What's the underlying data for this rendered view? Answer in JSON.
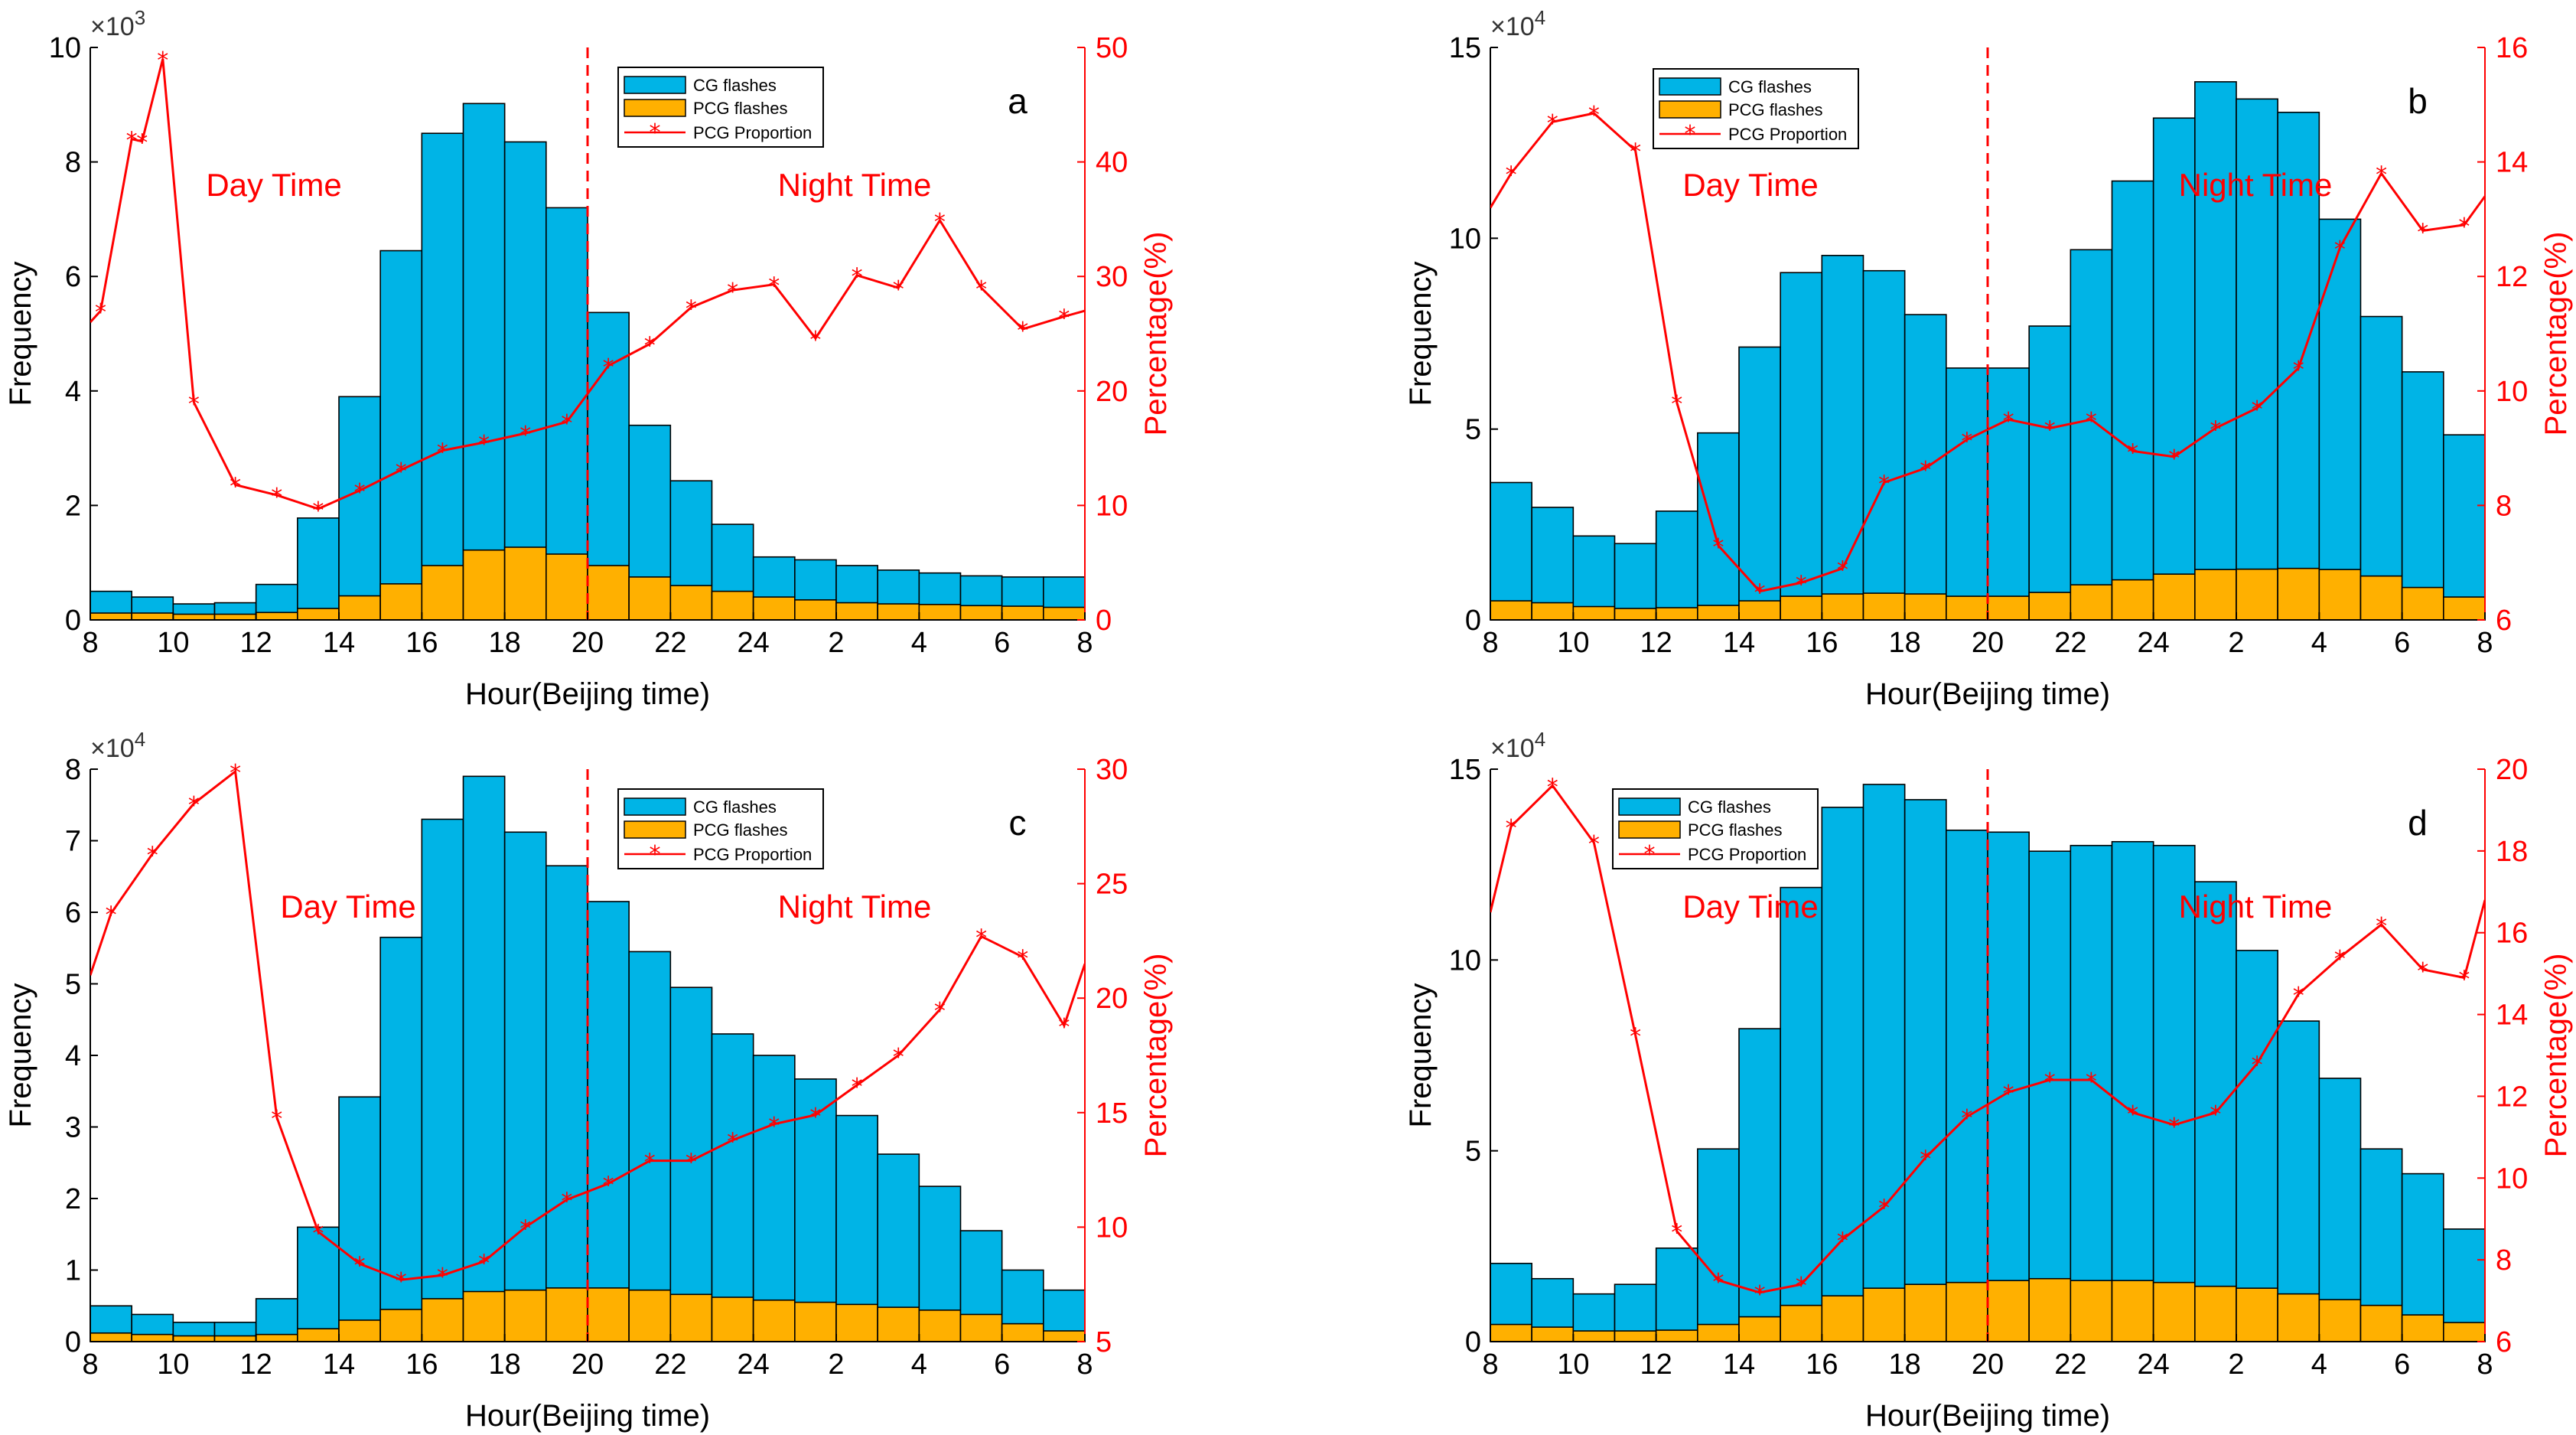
{
  "figure": {
    "xlabel": "Hour(Beijing time)",
    "ylabel_left": "Frequency",
    "ylabel_right": "Percentage(%)",
    "day_label": "Day Time",
    "night_label": "Night Time",
    "legend": [
      "CG flashes",
      "PCG flashes",
      "PCG Proportion"
    ],
    "x_ticks": [
      "8",
      "10",
      "12",
      "14",
      "16",
      "18",
      "20",
      "22",
      "24",
      "2",
      "4",
      "6",
      "8"
    ],
    "colors": {
      "cg": "#00b4e6",
      "pcg": "#ffb000",
      "line": "#ff0000",
      "divider": "#ff0000"
    }
  },
  "chart_data": [
    {
      "panel_label": "a",
      "type": "bar",
      "stacked": true,
      "title": "",
      "xlabel": "Hour(Beijing time)",
      "ylabel": "Frequency",
      "ylabel_right": "Percentage(%)",
      "exponent": "×10",
      "exponent_power": "3",
      "ylim": [
        0,
        10
      ],
      "yticks": [
        "0",
        "2",
        "4",
        "6",
        "8",
        "10"
      ],
      "ylim_right": [
        0,
        50
      ],
      "yticks_right": [
        "0",
        "10",
        "20",
        "30",
        "40",
        "50"
      ],
      "divider_hour_index": 12,
      "categories_hour_index": [
        0,
        1,
        2,
        3,
        4,
        5,
        6,
        7,
        8,
        9,
        10,
        11,
        12,
        13,
        14,
        15,
        16,
        17,
        18,
        19,
        20,
        21,
        22,
        23
      ],
      "series": [
        {
          "name": "CG flashes",
          "values": [
            0.5,
            0.4,
            0.28,
            0.3,
            0.62,
            1.78,
            3.9,
            6.45,
            8.5,
            9.02,
            8.35,
            7.2,
            5.37,
            3.4,
            2.43,
            1.67,
            1.1,
            1.05,
            0.95,
            0.87,
            0.82,
            0.77,
            0.75,
            0.75
          ]
        },
        {
          "name": "PCG flashes",
          "values": [
            0.12,
            0.12,
            0.1,
            0.1,
            0.13,
            0.2,
            0.42,
            0.63,
            0.95,
            1.22,
            1.27,
            1.15,
            0.95,
            0.75,
            0.6,
            0.5,
            0.4,
            0.35,
            0.3,
            0.28,
            0.27,
            0.25,
            0.24,
            0.22
          ]
        },
        {
          "name": "PCG Proportion",
          "axis": "right",
          "x": [
            0,
            0.25,
            1,
            1.25,
            1.75,
            2.5,
            3.5,
            4.5,
            5.5,
            6.5,
            7.5,
            8.5,
            9.5,
            10.5,
            11.5,
            12.5,
            13.5,
            14.5,
            15.5,
            16.5,
            17.5,
            18.5,
            19.5,
            20.5,
            21.5,
            22.5,
            23.5,
            24
          ],
          "values": [
            26,
            27,
            42,
            41.8,
            49,
            19,
            11.8,
            10.9,
            9.7,
            11.3,
            13.1,
            14.8,
            15.5,
            16.3,
            17.3,
            22.2,
            24.1,
            27.3,
            28.8,
            29.3,
            24.6,
            30.1,
            29,
            34.9,
            29,
            25.4,
            26.5,
            27
          ]
        }
      ]
    },
    {
      "panel_label": "b",
      "type": "bar",
      "stacked": true,
      "title": "",
      "xlabel": "Hour(Beijing time)",
      "ylabel": "Frequency",
      "ylabel_right": "Percentage(%)",
      "exponent": "×10",
      "exponent_power": "4",
      "ylim": [
        0,
        15
      ],
      "yticks": [
        "0",
        "5",
        "10",
        "15"
      ],
      "ylim_right": [
        6,
        16
      ],
      "yticks_right": [
        "6",
        "8",
        "10",
        "12",
        "14",
        "16"
      ],
      "divider_hour_index": 12,
      "categories_hour_index": [
        0,
        1,
        2,
        3,
        4,
        5,
        6,
        7,
        8,
        9,
        10,
        11,
        12,
        13,
        14,
        15,
        16,
        17,
        18,
        19,
        20,
        21,
        22,
        23
      ],
      "series": [
        {
          "name": "CG flashes",
          "values": [
            3.6,
            2.95,
            2.2,
            2.0,
            2.85,
            4.9,
            7.15,
            9.1,
            9.55,
            9.15,
            8.0,
            6.6,
            6.6,
            7.7,
            9.7,
            11.5,
            13.15,
            14.1,
            13.65,
            13.3,
            10.5,
            7.95,
            6.5,
            4.85
          ]
        },
        {
          "name": "PCG flashes",
          "values": [
            0.5,
            0.45,
            0.35,
            0.3,
            0.32,
            0.38,
            0.5,
            0.62,
            0.68,
            0.7,
            0.68,
            0.62,
            0.62,
            0.72,
            0.92,
            1.05,
            1.2,
            1.32,
            1.33,
            1.35,
            1.32,
            1.15,
            0.85,
            0.6
          ]
        },
        {
          "name": "PCG Proportion",
          "axis": "right",
          "x": [
            0,
            0.5,
            1.5,
            2.5,
            3.5,
            4.5,
            5.5,
            6.5,
            7.5,
            8.5,
            9.5,
            10.5,
            11.5,
            12.5,
            13.5,
            14.5,
            15.5,
            16.5,
            17.5,
            18.5,
            19.5,
            20.5,
            21.5,
            22.5,
            23.5,
            24
          ],
          "values": [
            13.2,
            13.8,
            14.7,
            14.85,
            14.2,
            9.8,
            7.3,
            6.5,
            6.65,
            6.9,
            8.4,
            8.65,
            9.15,
            9.5,
            9.35,
            9.5,
            8.95,
            8.85,
            9.35,
            9.7,
            10.4,
            12.5,
            13.8,
            12.8,
            12.9,
            13.4
          ]
        }
      ]
    },
    {
      "panel_label": "c",
      "type": "bar",
      "stacked": true,
      "title": "",
      "xlabel": "Hour(Beijing time)",
      "ylabel": "Frequency",
      "ylabel_right": "Percentage(%)",
      "exponent": "×10",
      "exponent_power": "4",
      "ylim": [
        0,
        8
      ],
      "yticks": [
        "0",
        "1",
        "2",
        "3",
        "4",
        "5",
        "6",
        "7",
        "8"
      ],
      "ylim_right": [
        5,
        30
      ],
      "yticks_right": [
        "5",
        "10",
        "15",
        "20",
        "25",
        "30"
      ],
      "divider_hour_index": 12,
      "categories_hour_index": [
        0,
        1,
        2,
        3,
        4,
        5,
        6,
        7,
        8,
        9,
        10,
        11,
        12,
        13,
        14,
        15,
        16,
        17,
        18,
        19,
        20,
        21,
        22,
        23
      ],
      "series": [
        {
          "name": "CG flashes",
          "values": [
            0.5,
            0.38,
            0.27,
            0.27,
            0.6,
            1.6,
            3.42,
            5.65,
            7.3,
            7.9,
            7.12,
            6.65,
            6.15,
            5.45,
            4.95,
            4.3,
            4.0,
            3.67,
            3.16,
            2.62,
            2.17,
            1.55,
            1.0,
            0.72
          ]
        },
        {
          "name": "PCG flashes",
          "values": [
            0.12,
            0.1,
            0.08,
            0.08,
            0.1,
            0.18,
            0.3,
            0.45,
            0.6,
            0.7,
            0.72,
            0.75,
            0.75,
            0.72,
            0.66,
            0.62,
            0.58,
            0.55,
            0.52,
            0.48,
            0.44,
            0.38,
            0.25,
            0.15
          ]
        },
        {
          "name": "PCG Proportion",
          "axis": "right",
          "x": [
            0,
            0.5,
            1.5,
            2.5,
            3.5,
            4.5,
            5.5,
            6.5,
            7.5,
            8.5,
            9.5,
            10.5,
            11.5,
            12.5,
            13.5,
            14.5,
            15.5,
            16.5,
            17.5,
            18.5,
            19.5,
            20.5,
            21.5,
            22.5,
            23.5,
            24
          ],
          "values": [
            21,
            23.7,
            26.3,
            28.5,
            29.9,
            14.8,
            9.8,
            8.4,
            7.7,
            7.9,
            8.5,
            10,
            11.2,
            11.9,
            12.9,
            12.9,
            13.8,
            14.5,
            14.9,
            16.2,
            17.5,
            19.5,
            22.7,
            21.8,
            18.8,
            21.5
          ]
        }
      ]
    },
    {
      "panel_label": "d",
      "type": "bar",
      "stacked": true,
      "title": "",
      "xlabel": "Hour(Beijing time)",
      "ylabel": "Frequency",
      "ylabel_right": "Percentage(%)",
      "exponent": "×10",
      "exponent_power": "4",
      "ylim": [
        0,
        15
      ],
      "yticks": [
        "0",
        "5",
        "10",
        "15"
      ],
      "ylim_right": [
        6,
        20
      ],
      "yticks_right": [
        "6",
        "8",
        "10",
        "12",
        "14",
        "16",
        "18",
        "20"
      ],
      "divider_hour_index": 12,
      "categories_hour_index": [
        0,
        1,
        2,
        3,
        4,
        5,
        6,
        7,
        8,
        9,
        10,
        11,
        12,
        13,
        14,
        15,
        16,
        17,
        18,
        19,
        20,
        21,
        22,
        23
      ],
      "series": [
        {
          "name": "CG flashes",
          "values": [
            2.05,
            1.65,
            1.25,
            1.5,
            2.45,
            5.05,
            8.2,
            11.9,
            14.0,
            14.6,
            14.2,
            13.4,
            13.35,
            12.85,
            13.0,
            13.1,
            13.0,
            12.05,
            10.25,
            8.4,
            6.9,
            5.05,
            4.4,
            2.95
          ]
        },
        {
          "name": "PCG flashes",
          "values": [
            0.45,
            0.38,
            0.28,
            0.28,
            0.3,
            0.45,
            0.65,
            0.95,
            1.2,
            1.4,
            1.5,
            1.55,
            1.6,
            1.65,
            1.6,
            1.6,
            1.55,
            1.45,
            1.4,
            1.25,
            1.1,
            0.95,
            0.7,
            0.5
          ]
        },
        {
          "name": "PCG Proportion",
          "axis": "right",
          "x": [
            0,
            0.5,
            1.5,
            2.5,
            3.5,
            4.5,
            5.5,
            6.5,
            7.5,
            8.5,
            9.5,
            10.5,
            11.5,
            12.5,
            13.5,
            14.5,
            15.5,
            16.5,
            17.5,
            18.5,
            19.5,
            20.5,
            21.5,
            22.5,
            23.5,
            24
          ],
          "values": [
            16.5,
            18.6,
            19.6,
            18.2,
            13.5,
            8.7,
            7.5,
            7.2,
            7.4,
            8.5,
            9.3,
            10.5,
            11.5,
            12.1,
            12.4,
            12.4,
            11.6,
            11.3,
            11.6,
            12.8,
            14.5,
            15.4,
            16.2,
            15.1,
            14.9,
            16.8
          ]
        }
      ]
    }
  ]
}
